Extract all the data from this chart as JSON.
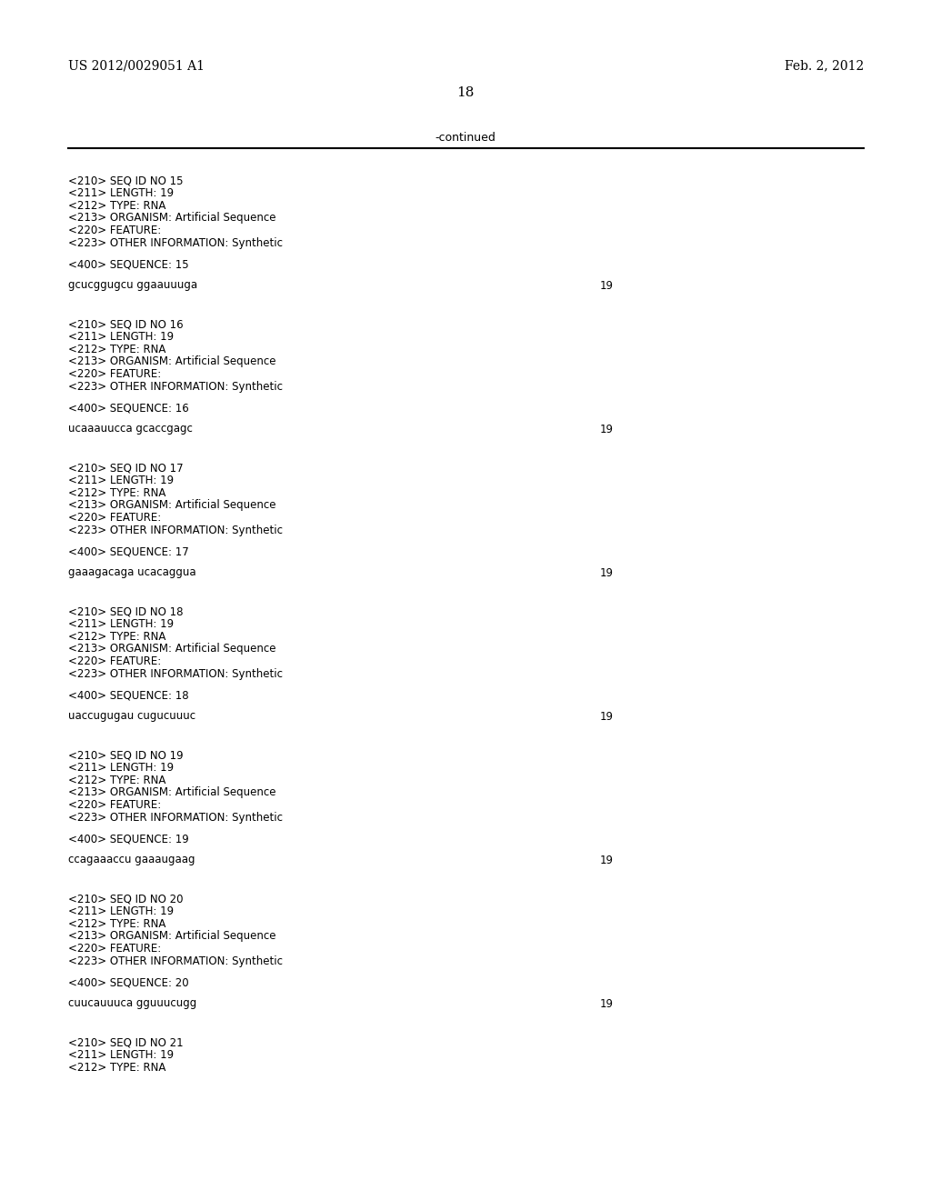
{
  "background_color": "#ffffff",
  "header_left": "US 2012/0029051 A1",
  "header_right": "Feb. 2, 2012",
  "page_number": "18",
  "continued_text": "-continued",
  "body_font_size": 8.5,
  "header_font_size": 10,
  "page_num_font_size": 11,
  "content": [
    {
      "type": "entry",
      "lines": [
        "<210> SEQ ID NO 15",
        "<211> LENGTH: 19",
        "<212> TYPE: RNA",
        "<213> ORGANISM: Artificial Sequence",
        "<220> FEATURE:",
        "<223> OTHER INFORMATION: Synthetic"
      ],
      "sequence_label": "<400> SEQUENCE: 15",
      "sequence": "gcucggugcu ggaauuuga",
      "seq_length": "19"
    },
    {
      "type": "entry",
      "lines": [
        "<210> SEQ ID NO 16",
        "<211> LENGTH: 19",
        "<212> TYPE: RNA",
        "<213> ORGANISM: Artificial Sequence",
        "<220> FEATURE:",
        "<223> OTHER INFORMATION: Synthetic"
      ],
      "sequence_label": "<400> SEQUENCE: 16",
      "sequence": "ucaaauucca gcaccgagc",
      "seq_length": "19"
    },
    {
      "type": "entry",
      "lines": [
        "<210> SEQ ID NO 17",
        "<211> LENGTH: 19",
        "<212> TYPE: RNA",
        "<213> ORGANISM: Artificial Sequence",
        "<220> FEATURE:",
        "<223> OTHER INFORMATION: Synthetic"
      ],
      "sequence_label": "<400> SEQUENCE: 17",
      "sequence": "gaaagacaga ucacaggua",
      "seq_length": "19"
    },
    {
      "type": "entry",
      "lines": [
        "<210> SEQ ID NO 18",
        "<211> LENGTH: 19",
        "<212> TYPE: RNA",
        "<213> ORGANISM: Artificial Sequence",
        "<220> FEATURE:",
        "<223> OTHER INFORMATION: Synthetic"
      ],
      "sequence_label": "<400> SEQUENCE: 18",
      "sequence": "uaccugugau cugucuuuc",
      "seq_length": "19"
    },
    {
      "type": "entry",
      "lines": [
        "<210> SEQ ID NO 19",
        "<211> LENGTH: 19",
        "<212> TYPE: RNA",
        "<213> ORGANISM: Artificial Sequence",
        "<220> FEATURE:",
        "<223> OTHER INFORMATION: Synthetic"
      ],
      "sequence_label": "<400> SEQUENCE: 19",
      "sequence": "ccagaaaccu gaaaugaag",
      "seq_length": "19"
    },
    {
      "type": "entry",
      "lines": [
        "<210> SEQ ID NO 20",
        "<211> LENGTH: 19",
        "<212> TYPE: RNA",
        "<213> ORGANISM: Artificial Sequence",
        "<220> FEATURE:",
        "<223> OTHER INFORMATION: Synthetic"
      ],
      "sequence_label": "<400> SEQUENCE: 20",
      "sequence": "cuucauuuca gguuucugg",
      "seq_length": "19"
    },
    {
      "type": "entry_partial",
      "lines": [
        "<210> SEQ ID NO 21",
        "<211> LENGTH: 19",
        "<212> TYPE: RNA"
      ]
    }
  ]
}
